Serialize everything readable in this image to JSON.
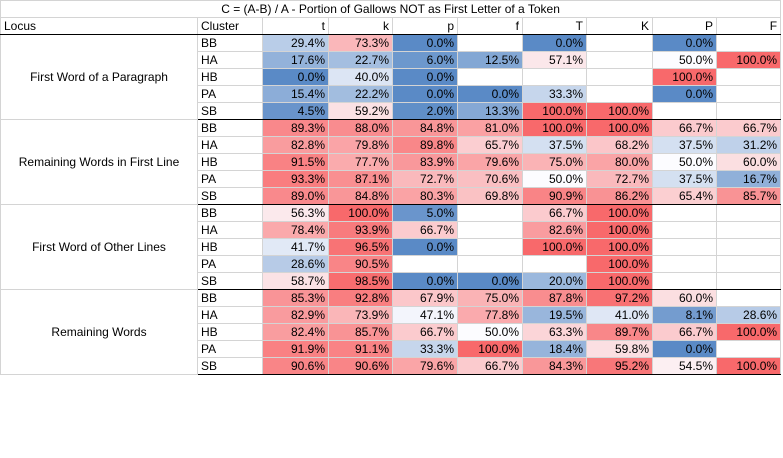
{
  "chart_data": {
    "type": "table",
    "title": "C = (A-B) / A - Portion of Gallows NOT as First Letter of a Token",
    "header": {
      "locus": "Locus",
      "cluster": "Cluster"
    },
    "columns": [
      "t",
      "k",
      "p",
      "f",
      "T",
      "K",
      "P",
      "F"
    ],
    "groups": [
      {
        "locus": "First Word of a Paragraph",
        "rows": [
          {
            "cluster": "BB",
            "values": [
              29.4,
              73.3,
              0.0,
              null,
              0.0,
              null,
              0.0,
              null
            ]
          },
          {
            "cluster": "HA",
            "values": [
              17.6,
              22.7,
              6.0,
              12.5,
              57.1,
              null,
              50.0,
              100.0
            ]
          },
          {
            "cluster": "HB",
            "values": [
              0.0,
              40.0,
              0.0,
              null,
              null,
              null,
              100.0,
              null
            ]
          },
          {
            "cluster": "PA",
            "values": [
              15.4,
              22.2,
              0.0,
              0.0,
              33.3,
              null,
              0.0,
              null
            ]
          },
          {
            "cluster": "SB",
            "values": [
              4.5,
              59.2,
              2.0,
              13.3,
              100.0,
              100.0,
              null,
              null
            ]
          }
        ]
      },
      {
        "locus": "Remaining Words in First Line",
        "rows": [
          {
            "cluster": "BB",
            "values": [
              89.3,
              88.0,
              84.8,
              81.0,
              100.0,
              100.0,
              66.7,
              66.7
            ]
          },
          {
            "cluster": "HA",
            "values": [
              82.8,
              79.8,
              89.8,
              65.7,
              37.5,
              68.2,
              37.5,
              31.2
            ]
          },
          {
            "cluster": "HB",
            "values": [
              91.5,
              77.7,
              83.9,
              79.6,
              75.0,
              80.0,
              50.0,
              60.0
            ]
          },
          {
            "cluster": "PA",
            "values": [
              93.3,
              87.1,
              72.7,
              70.6,
              50.0,
              72.7,
              37.5,
              16.7
            ]
          },
          {
            "cluster": "SB",
            "values": [
              89.0,
              84.8,
              80.3,
              69.8,
              90.9,
              86.2,
              65.4,
              85.7
            ]
          }
        ]
      },
      {
        "locus": "First Word of Other Lines",
        "rows": [
          {
            "cluster": "BB",
            "values": [
              56.3,
              100.0,
              5.0,
              null,
              66.7,
              100.0,
              null,
              null
            ]
          },
          {
            "cluster": "HA",
            "values": [
              78.4,
              93.9,
              66.7,
              null,
              82.6,
              100.0,
              null,
              null
            ]
          },
          {
            "cluster": "HB",
            "values": [
              41.7,
              96.5,
              0.0,
              null,
              100.0,
              100.0,
              null,
              null
            ]
          },
          {
            "cluster": "PA",
            "values": [
              28.6,
              90.5,
              null,
              null,
              null,
              100.0,
              null,
              null
            ]
          },
          {
            "cluster": "SB",
            "values": [
              58.7,
              98.5,
              0.0,
              0.0,
              20.0,
              100.0,
              null,
              null
            ]
          }
        ]
      },
      {
        "locus": "Remaining Words",
        "rows": [
          {
            "cluster": "BB",
            "values": [
              85.3,
              92.8,
              67.9,
              75.0,
              87.8,
              97.2,
              60.0,
              null
            ]
          },
          {
            "cluster": "HA",
            "values": [
              82.9,
              73.9,
              47.1,
              77.8,
              19.5,
              41.0,
              8.1,
              28.6
            ]
          },
          {
            "cluster": "HB",
            "values": [
              82.4,
              85.7,
              66.7,
              50.0,
              63.3,
              89.7,
              66.7,
              100.0
            ]
          },
          {
            "cluster": "PA",
            "values": [
              91.9,
              91.1,
              33.3,
              100.0,
              18.4,
              59.8,
              0.0,
              null
            ]
          },
          {
            "cluster": "SB",
            "values": [
              90.6,
              90.6,
              79.6,
              66.7,
              84.3,
              95.2,
              54.5,
              100.0
            ]
          }
        ]
      }
    ],
    "color_scale": {
      "low": "#5a8ac6",
      "mid": "#fcfcff",
      "high": "#f8696b",
      "range": [
        0,
        100
      ]
    }
  }
}
